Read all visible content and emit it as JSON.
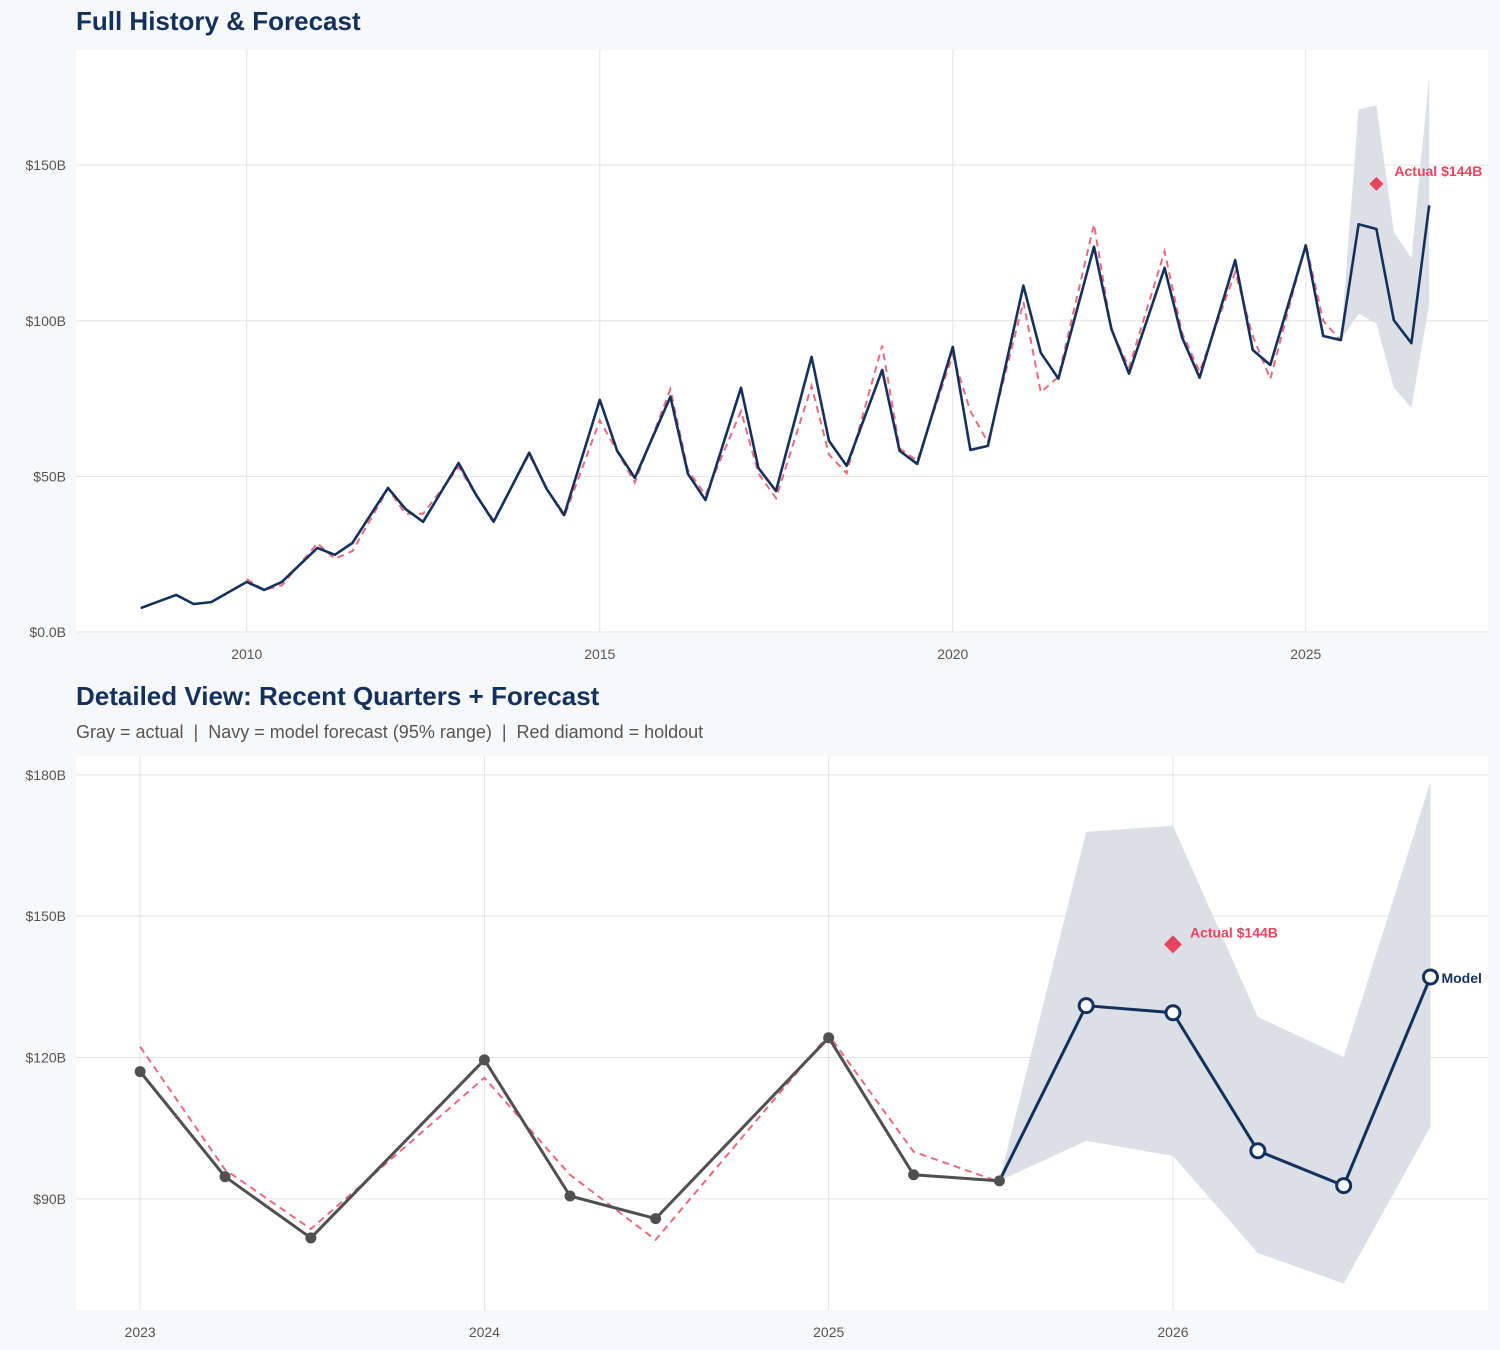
{
  "colors": {
    "navy": "#13315c",
    "red": "#e8435f",
    "gray": "#505050",
    "band": "#dce0e6",
    "grid": "#e3e3e3"
  },
  "chart_data": [
    {
      "type": "line",
      "title": "Full History & Forecast",
      "xlabel": "",
      "ylabel": "",
      "xlim": [
        "2007-08-01",
        "2027-08-01"
      ],
      "ylim": [
        0,
        187
      ],
      "x_ticks": [
        {
          "value": "2010-01-01",
          "label": "2010"
        },
        {
          "value": "2015-01-01",
          "label": "2015"
        },
        {
          "value": "2020-01-01",
          "label": "2020"
        },
        {
          "value": "2025-01-01",
          "label": "2025"
        }
      ],
      "y_ticks": [
        {
          "value": 0,
          "label": "$0.0B"
        },
        {
          "value": 50,
          "label": "$50B"
        },
        {
          "value": 100,
          "label": "$100B"
        },
        {
          "value": 150,
          "label": "$150B"
        }
      ],
      "grid": true,
      "series": [
        {
          "role": "actual",
          "style": "navy solid",
          "points": [
            [
              "2008-07-01",
              7.7
            ],
            [
              "2009-01-01",
              11.9
            ],
            [
              "2009-04-01",
              9.0
            ],
            [
              "2009-07-01",
              9.6
            ],
            [
              "2010-01-01",
              16.1
            ],
            [
              "2010-04-01",
              13.5
            ],
            [
              "2010-07-01",
              16.1
            ],
            [
              "2011-01-01",
              27.0
            ],
            [
              "2011-04-01",
              24.8
            ],
            [
              "2011-07-01",
              28.6
            ],
            [
              "2012-01-01",
              46.3
            ],
            [
              "2012-04-01",
              39.5
            ],
            [
              "2012-07-01",
              35.4
            ],
            [
              "2013-01-01",
              54.3
            ],
            [
              "2013-04-01",
              44.1
            ],
            [
              "2013-07-01",
              35.4
            ],
            [
              "2014-01-01",
              57.6
            ],
            [
              "2014-04-01",
              46.0
            ],
            [
              "2014-07-01",
              37.6
            ],
            [
              "2015-01-01",
              74.6
            ],
            [
              "2015-04-01",
              58.2
            ],
            [
              "2015-07-01",
              49.5
            ],
            [
              "2016-01-01",
              75.6
            ],
            [
              "2016-04-01",
              50.8
            ],
            [
              "2016-07-01",
              42.4
            ],
            [
              "2017-01-01",
              78.5
            ],
            [
              "2017-04-01",
              52.7
            ],
            [
              "2017-07-01",
              45.3
            ],
            [
              "2018-01-01",
              88.4
            ],
            [
              "2018-04-01",
              61.4
            ],
            [
              "2018-07-01",
              53.4
            ],
            [
              "2019-01-01",
              84.2
            ],
            [
              "2019-04-01",
              58.2
            ],
            [
              "2019-07-01",
              54.0
            ],
            [
              "2020-01-01",
              91.6
            ],
            [
              "2020-04-01",
              58.5
            ],
            [
              "2020-07-01",
              59.8
            ],
            [
              "2021-01-01",
              111.3
            ],
            [
              "2021-04-01",
              89.7
            ],
            [
              "2021-07-01",
              81.4
            ],
            [
              "2022-01-01",
              123.8
            ],
            [
              "2022-04-01",
              97.4
            ],
            [
              "2022-07-01",
              83.0
            ],
            [
              "2023-01-01",
              117.0
            ],
            [
              "2023-04-01",
              94.7
            ],
            [
              "2023-07-01",
              81.7
            ],
            [
              "2024-01-01",
              119.5
            ],
            [
              "2024-04-01",
              90.6
            ],
            [
              "2024-07-01",
              85.8
            ],
            [
              "2025-01-01",
              124.2
            ],
            [
              "2025-04-01",
              95.1
            ],
            [
              "2025-07-01",
              93.8
            ],
            [
              "2025-10-01",
              131.0
            ],
            [
              "2026-01-01",
              129.5
            ],
            [
              "2026-04-01",
              100.2
            ],
            [
              "2026-07-01",
              92.8
            ],
            [
              "2026-10-01",
              137.1
            ]
          ]
        },
        {
          "role": "fitted",
          "style": "red dashed",
          "points": [
            [
              "2010-01-01",
              17
            ],
            [
              "2010-04-01",
              13.5
            ],
            [
              "2010-07-01",
              15
            ],
            [
              "2011-01-01",
              28.5
            ],
            [
              "2011-04-01",
              23.5
            ],
            [
              "2011-07-01",
              26
            ],
            [
              "2012-01-01",
              46
            ],
            [
              "2012-04-01",
              38
            ],
            [
              "2012-07-01",
              38
            ],
            [
              "2013-01-01",
              53
            ],
            [
              "2013-04-01",
              44
            ],
            [
              "2013-07-01",
              36
            ],
            [
              "2014-01-01",
              57
            ],
            [
              "2014-04-01",
              46
            ],
            [
              "2014-07-01",
              37
            ],
            [
              "2015-01-01",
              68
            ],
            [
              "2015-04-01",
              58
            ],
            [
              "2015-07-01",
              48
            ],
            [
              "2016-01-01",
              78
            ],
            [
              "2016-04-01",
              52
            ],
            [
              "2016-07-01",
              44
            ],
            [
              "2017-01-01",
              71
            ],
            [
              "2017-04-01",
              51
            ],
            [
              "2017-07-01",
              43
            ],
            [
              "2018-01-01",
              79
            ],
            [
              "2018-04-01",
              57
            ],
            [
              "2018-07-01",
              51
            ],
            [
              "2019-01-01",
              92
            ],
            [
              "2019-04-01",
              59
            ],
            [
              "2019-07-01",
              55
            ],
            [
              "2020-01-01",
              89
            ],
            [
              "2020-04-01",
              71
            ],
            [
              "2020-07-01",
              61
            ],
            [
              "2021-01-01",
              106
            ],
            [
              "2021-04-01",
              77
            ],
            [
              "2021-07-01",
              82
            ],
            [
              "2022-01-01",
              131
            ],
            [
              "2022-04-01",
              97
            ],
            [
              "2022-07-01",
              85
            ],
            [
              "2023-01-01",
              122.3
            ],
            [
              "2023-04-01",
              96.2
            ],
            [
              "2023-07-01",
              83.6
            ],
            [
              "2024-01-01",
              115.7
            ],
            [
              "2024-04-01",
              95.1
            ],
            [
              "2024-07-01",
              81.3
            ],
            [
              "2025-01-01",
              124.8
            ],
            [
              "2025-04-01",
              100.0
            ],
            [
              "2025-07-01",
              93.6
            ]
          ]
        }
      ],
      "band": {
        "label": "95% range",
        "points": [
          [
            "2025-07-01",
            93.8,
            93.8
          ],
          [
            "2025-10-01",
            102.3,
            167.9
          ],
          [
            "2026-01-01",
            99.1,
            169.2
          ],
          [
            "2026-04-01",
            78.5,
            128.6
          ],
          [
            "2026-07-01",
            72.0,
            120.1
          ],
          [
            "2026-10-01",
            105.3,
            178.5
          ]
        ]
      },
      "holdout": {
        "date": "2026-01-01",
        "value": 144,
        "label": "Actual $144B"
      }
    },
    {
      "type": "line",
      "title": "Detailed View: Recent Quarters + Forecast",
      "subtitle": "Gray = actual  |  Navy = model forecast (95% range)  |  Red diamond = holdout",
      "xlabel": "",
      "ylabel": "",
      "xlim": [
        "2022-10-25",
        "2026-12-01"
      ],
      "ylim": [
        66.4,
        184
      ],
      "x_ticks": [
        {
          "value": "2023-01-01",
          "label": "2023"
        },
        {
          "value": "2024-01-01",
          "label": "2024"
        },
        {
          "value": "2025-01-01",
          "label": "2025"
        },
        {
          "value": "2026-01-01",
          "label": "2026"
        }
      ],
      "y_ticks": [
        {
          "value": 90,
          "label": "$90B"
        },
        {
          "value": 120,
          "label": "$120B"
        },
        {
          "value": 150,
          "label": "$150B"
        },
        {
          "value": 180,
          "label": "$180B"
        }
      ],
      "grid": true,
      "series": [
        {
          "role": "actual",
          "style": "gray solid markers",
          "points": [
            [
              "2023-01-01",
              117.0
            ],
            [
              "2023-04-01",
              94.7
            ],
            [
              "2023-07-01",
              81.7
            ],
            [
              "2024-01-01",
              119.5
            ],
            [
              "2024-04-01",
              90.6
            ],
            [
              "2024-07-01",
              85.8
            ],
            [
              "2025-01-01",
              124.2
            ],
            [
              "2025-04-01",
              95.1
            ],
            [
              "2025-07-01",
              93.8
            ]
          ]
        },
        {
          "role": "fitted",
          "style": "red dashed",
          "points": [
            [
              "2023-01-01",
              122.3
            ],
            [
              "2023-04-01",
              96.2
            ],
            [
              "2023-07-01",
              83.6
            ],
            [
              "2024-01-01",
              115.7
            ],
            [
              "2024-04-01",
              95.1
            ],
            [
              "2024-07-01",
              81.3
            ],
            [
              "2025-01-01",
              124.8
            ],
            [
              "2025-04-01",
              100.0
            ],
            [
              "2025-07-01",
              93.6
            ]
          ]
        },
        {
          "role": "forecast",
          "style": "navy solid open markers",
          "points": [
            [
              "2025-07-01",
              93.8
            ],
            [
              "2025-10-01",
              131.0
            ],
            [
              "2026-01-01",
              129.5
            ],
            [
              "2026-04-01",
              100.2
            ],
            [
              "2026-07-01",
              92.8
            ],
            [
              "2026-10-01",
              137.1
            ]
          ]
        }
      ],
      "band": {
        "label": "95% range",
        "points": [
          [
            "2025-07-01",
            93.8,
            93.8
          ],
          [
            "2025-10-01",
            102.3,
            167.9
          ],
          [
            "2026-01-01",
            99.1,
            169.2
          ],
          [
            "2026-04-01",
            78.5,
            128.6
          ],
          [
            "2026-07-01",
            72.0,
            120.1
          ],
          [
            "2026-10-01",
            105.3,
            178.5
          ]
        ]
      },
      "holdout": {
        "date": "2026-01-01",
        "value": 144,
        "label": "Actual $144B"
      },
      "end_label": "Model"
    }
  ]
}
